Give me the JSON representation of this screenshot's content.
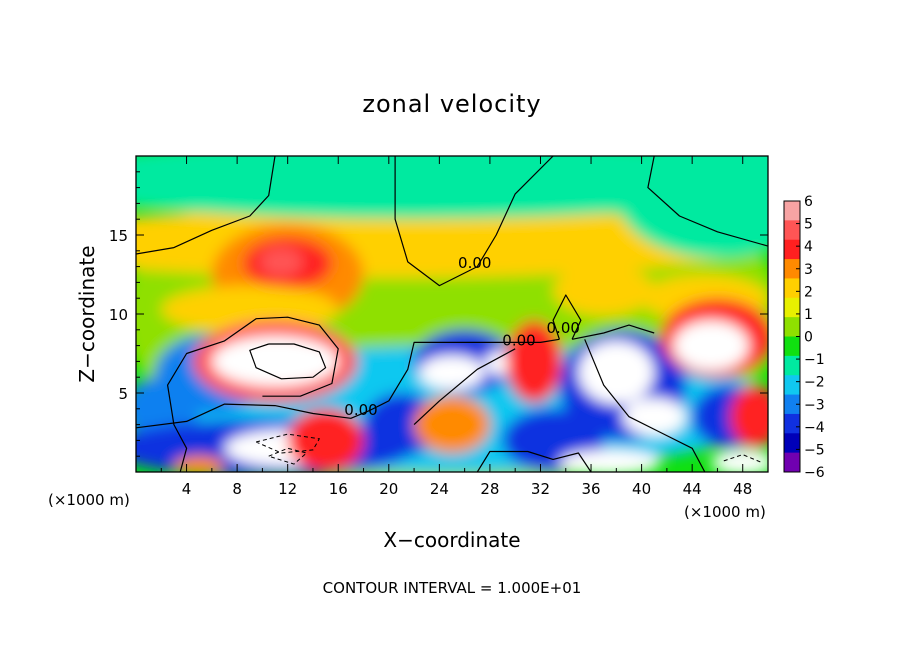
{
  "chart_data": {
    "type": "heatmap",
    "title": "zonal velocity",
    "xlabel": "X−coordinate",
    "ylabel": "Z−coordinate",
    "x_unit_left": "(×1000 m)",
    "x_unit_right": "(×1000 m)",
    "footer": "CONTOUR INTERVAL = 1.000E+01",
    "xlim": [
      0,
      50
    ],
    "ylim": [
      0,
      20
    ],
    "xticks": [
      4,
      8,
      12,
      16,
      20,
      24,
      28,
      32,
      36,
      40,
      44,
      48
    ],
    "yticks": [
      5,
      10,
      15
    ],
    "xtick_labels": [
      "4",
      "8",
      "12",
      "16",
      "20",
      "24",
      "28",
      "32",
      "36",
      "40",
      "44",
      "48"
    ],
    "ytick_labels": [
      "5",
      "10",
      "15"
    ],
    "colorbar": {
      "min": -6,
      "max": 6,
      "ticks": [
        "6",
        "5",
        "4",
        "3",
        "2",
        "1",
        "0",
        "−1",
        "−2",
        "−3",
        "−4",
        "−5",
        "−6"
      ],
      "colors": [
        "#f7a3a3",
        "#ff5555",
        "#ff2020",
        "#ff8a00",
        "#ffd000",
        "#e8f000",
        "#8fe000",
        "#10e010",
        "#00eaa0",
        "#10c8f0",
        "#1080f0",
        "#1030e0",
        "#0000b8",
        "#7000b0"
      ]
    },
    "contour_labels": [
      {
        "text": "0.00",
        "x": 26.8,
        "z": 12.9
      },
      {
        "text": "0.00",
        "x": 33.8,
        "z": 8.8
      },
      {
        "text": "0.00",
        "x": 30.3,
        "z": 8.0
      },
      {
        "text": "0.00",
        "x": 17.8,
        "z": 3.6
      }
    ],
    "regions": [
      {
        "v": 0.5,
        "x": 25,
        "z": 10,
        "rx": 26,
        "rz": 11
      },
      {
        "v": 2.0,
        "x": 20,
        "z": 14.5,
        "rx": 30,
        "rz": 2.2
      },
      {
        "v": -1.0,
        "x": 22,
        "z": 18.5,
        "rx": 30,
        "rz": 2.5
      },
      {
        "v": -1.0,
        "x": 46,
        "z": 17.5,
        "rx": 8,
        "rz": 4
      },
      {
        "v": 3.0,
        "x": 12,
        "z": 12.5,
        "rx": 6,
        "rz": 3.2
      },
      {
        "v": 4.2,
        "x": 12,
        "z": 13.2,
        "rx": 3.5,
        "rz": 1.6
      },
      {
        "v": 5.2,
        "x": 11.5,
        "z": 13.3,
        "rx": 1.7,
        "rz": 0.9
      },
      {
        "v": 2.0,
        "x": 9,
        "z": 10.3,
        "rx": 7,
        "rz": 1.5
      },
      {
        "v": 2.5,
        "x": 37,
        "z": 11.5,
        "rx": 4,
        "rz": 1.6
      },
      {
        "v": 2.5,
        "x": 45,
        "z": 11,
        "rx": 5,
        "rz": 1.5
      },
      {
        "v": -2.0,
        "x": 25,
        "z": 4,
        "rx": 26,
        "rz": 4
      },
      {
        "v": -3.5,
        "x": 6,
        "z": 6.2,
        "rx": 4.5,
        "rz": 2.5
      },
      {
        "v": -3.0,
        "x": 2,
        "z": 4,
        "rx": 3,
        "rz": 2
      },
      {
        "v": -4.5,
        "x": 10,
        "z": 1.5,
        "rx": 12,
        "rz": 1.8
      },
      {
        "v": 5.2,
        "x": 11,
        "z": 7.0,
        "rx": 6.5,
        "rz": 2.6
      },
      {
        "v": 6.3,
        "x": 11,
        "z": 7.0,
        "rx": 5,
        "rz": 1.6
      },
      {
        "v": 6.3,
        "x": 12,
        "z": 1.5,
        "rx": 5,
        "rz": 1.2
      },
      {
        "v": -4.0,
        "x": 21,
        "z": 3.0,
        "rx": 3,
        "rz": 2
      },
      {
        "v": 3.0,
        "x": 25,
        "z": 3.0,
        "rx": 3,
        "rz": 1.8
      },
      {
        "v": -4.5,
        "x": 26,
        "z": 7.0,
        "rx": 4,
        "rz": 2
      },
      {
        "v": 6.3,
        "x": 25,
        "z": 6.3,
        "rx": 2.6,
        "rz": 1.1
      },
      {
        "v": 6.3,
        "x": 29,
        "z": 6.9,
        "rx": 1.4,
        "rz": 0.8
      },
      {
        "v": 4.5,
        "x": 31.5,
        "z": 7.0,
        "rx": 2.2,
        "rz": 2.6
      },
      {
        "v": -4.0,
        "x": 33,
        "z": 2.0,
        "rx": 4,
        "rz": 2
      },
      {
        "v": -4.5,
        "x": 38.5,
        "z": 5.5,
        "rx": 5,
        "rz": 3.5
      },
      {
        "v": 6.3,
        "x": 38,
        "z": 6.3,
        "rx": 3,
        "rz": 2.0
      },
      {
        "v": 6.3,
        "x": 41,
        "z": 3.5,
        "rx": 2.5,
        "rz": 1.2
      },
      {
        "v": 6.3,
        "x": 37.5,
        "z": 0.6,
        "rx": 4,
        "rz": 0.8
      },
      {
        "v": 4.5,
        "x": 46,
        "z": 8.5,
        "rx": 4.5,
        "rz": 2.5
      },
      {
        "v": 6.3,
        "x": 45.5,
        "z": 8.0,
        "rx": 3,
        "rz": 1.6
      },
      {
        "v": -4.0,
        "x": 47,
        "z": 3.5,
        "rx": 3,
        "rz": 2
      },
      {
        "v": 4.0,
        "x": 49,
        "z": 3.5,
        "rx": 2,
        "rz": 2
      },
      {
        "v": 6.3,
        "x": 48,
        "z": 0.6,
        "rx": 2.5,
        "rz": 0.8
      },
      {
        "v": 4.0,
        "x": 15,
        "z": 2.0,
        "rx": 3,
        "rz": 2
      },
      {
        "v": 3.0,
        "x": 5,
        "z": 0.4,
        "rx": 2,
        "rz": 0.6
      }
    ],
    "contours": [
      [
        [
          0,
          13.8
        ],
        [
          3,
          14.2
        ],
        [
          6,
          15.3
        ],
        [
          9,
          16.2
        ],
        [
          10.5,
          17.5
        ],
        [
          11,
          20
        ]
      ],
      [
        [
          41,
          20
        ],
        [
          40.5,
          18
        ],
        [
          43,
          16.2
        ],
        [
          46,
          15.2
        ],
        [
          50,
          14.3
        ]
      ],
      [
        [
          33,
          20
        ],
        [
          30,
          17.6
        ],
        [
          28.5,
          15
        ],
        [
          27,
          13
        ],
        [
          24,
          11.8
        ],
        [
          21.5,
          13.3
        ],
        [
          20.5,
          16
        ],
        [
          20.5,
          20
        ]
      ],
      [
        [
          0,
          2.8
        ],
        [
          4,
          3.2
        ],
        [
          7,
          4.3
        ],
        [
          11,
          4.2
        ],
        [
          14,
          3.7
        ],
        [
          17,
          3.4
        ],
        [
          18.5,
          3.9
        ],
        [
          20,
          4.5
        ],
        [
          21.5,
          6.5
        ],
        [
          22,
          8.2
        ],
        [
          25,
          8.2
        ],
        [
          29,
          8.2
        ],
        [
          32,
          8.2
        ],
        [
          33.5,
          8.4
        ]
      ],
      [
        [
          3.5,
          0
        ],
        [
          4,
          1.5
        ],
        [
          3,
          3
        ],
        [
          2.5,
          5.5
        ],
        [
          4,
          7.5
        ],
        [
          7,
          8.3
        ],
        [
          9.5,
          9.7
        ],
        [
          12,
          9.8
        ],
        [
          14.5,
          9.3
        ],
        [
          16,
          7.8
        ],
        [
          15.5,
          5.6
        ],
        [
          13,
          4.8
        ],
        [
          10,
          4.8
        ]
      ],
      [
        [
          10.5,
          8.1
        ],
        [
          9,
          7.7
        ],
        [
          9.5,
          6.6
        ],
        [
          11.5,
          5.9
        ],
        [
          14,
          6.0
        ],
        [
          15,
          6.6
        ],
        [
          14.5,
          7.6
        ],
        [
          12.5,
          8.1
        ],
        [
          10.5,
          8.1
        ]
      ],
      [
        [
          22,
          3
        ],
        [
          24,
          4.5
        ],
        [
          27,
          6.5
        ],
        [
          30,
          7.8
        ]
      ],
      [
        [
          33.5,
          8.4
        ],
        [
          33,
          9.6
        ],
        [
          34,
          11.2
        ],
        [
          35.2,
          9.6
        ],
        [
          34.5,
          8.4
        ]
      ],
      [
        [
          34.5,
          8.4
        ],
        [
          37,
          8.8
        ],
        [
          39,
          9.3
        ],
        [
          41,
          8.8
        ]
      ],
      [
        [
          35.5,
          8.4
        ],
        [
          37,
          5.5
        ],
        [
          39,
          3.5
        ],
        [
          41.5,
          2.5
        ],
        [
          44,
          1.5
        ],
        [
          45,
          0
        ]
      ],
      [
        [
          27,
          0
        ],
        [
          28,
          1.3
        ],
        [
          31,
          1.3
        ],
        [
          33,
          0.8
        ],
        [
          35,
          1.2
        ],
        [
          36,
          0
        ]
      ]
    ],
    "dashed_contours": [
      [
        [
          9.5,
          1.9
        ],
        [
          12,
          2.4
        ],
        [
          14.5,
          2.1
        ],
        [
          14,
          1.4
        ],
        [
          11.5,
          1.2
        ],
        [
          9.5,
          1.9
        ]
      ],
      [
        [
          10.5,
          1.0
        ],
        [
          12,
          1.5
        ],
        [
          13.5,
          1.2
        ],
        [
          12.5,
          0.5
        ],
        [
          10.5,
          1.0
        ]
      ],
      [
        [
          46.5,
          0.7
        ],
        [
          48,
          1.1
        ],
        [
          49.5,
          0.6
        ]
      ]
    ]
  }
}
